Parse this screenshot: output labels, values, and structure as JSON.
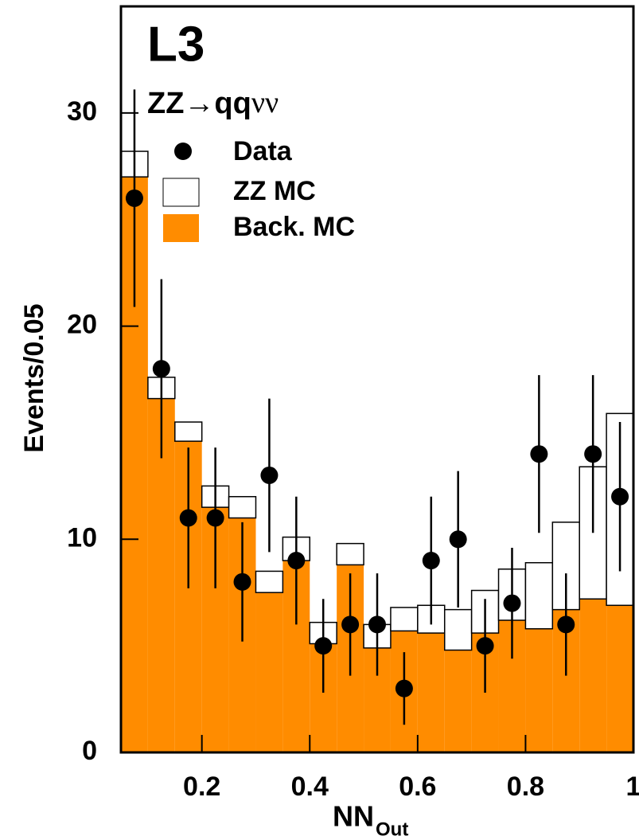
{
  "chart_data": {
    "type": "histogram",
    "annotations": [
      "L3",
      "ZZ→qq",
      "νν"
    ],
    "x_label": "NN",
    "x_label_sub": "Out",
    "y_label": "Events/0.05",
    "bins": [
      0.05,
      0.1,
      0.15,
      0.2,
      0.25,
      0.3,
      0.35,
      0.4,
      0.45,
      0.5,
      0.55,
      0.6,
      0.65,
      0.7,
      0.75,
      0.8,
      0.85,
      0.9,
      0.95,
      1.0
    ],
    "series": [
      {
        "name": "Back. MC",
        "color": "#ff8c00",
        "values": [
          27.0,
          16.6,
          14.6,
          11.5,
          11.0,
          7.5,
          9.0,
          5.1,
          8.8,
          4.9,
          5.7,
          5.6,
          4.8,
          5.6,
          6.2,
          5.8,
          6.7,
          7.2,
          6.9
        ]
      },
      {
        "name": "ZZ MC",
        "color": "#ffffff",
        "values": [
          1.2,
          1.0,
          0.9,
          1.0,
          1.0,
          1.0,
          1.1,
          1.0,
          1.0,
          1.1,
          1.1,
          1.3,
          1.9,
          2.0,
          2.4,
          3.1,
          4.1,
          6.2,
          9.0
        ]
      }
    ],
    "data": {
      "name": "Data",
      "color": "#000000",
      "x": [
        0.075,
        0.125,
        0.175,
        0.225,
        0.275,
        0.325,
        0.375,
        0.425,
        0.475,
        0.525,
        0.575,
        0.625,
        0.675,
        0.725,
        0.775,
        0.825,
        0.875,
        0.925,
        0.975
      ],
      "values": [
        26,
        18,
        11,
        11,
        8,
        13,
        9,
        5,
        6,
        6,
        3,
        9,
        10,
        5,
        7,
        14,
        6,
        14,
        12
      ],
      "errors": [
        5.1,
        4.2,
        3.3,
        3.3,
        2.8,
        3.6,
        3.0,
        2.2,
        2.4,
        2.4,
        1.7,
        3.0,
        3.2,
        2.2,
        2.6,
        3.7,
        2.4,
        3.7,
        3.5
      ]
    },
    "xlim": [
      0.05,
      1.0
    ],
    "ylim": [
      0,
      35
    ],
    "xticks": [
      0.2,
      0.4,
      0.6,
      0.8,
      1
    ],
    "yticks": [
      0,
      10,
      20,
      30
    ]
  }
}
